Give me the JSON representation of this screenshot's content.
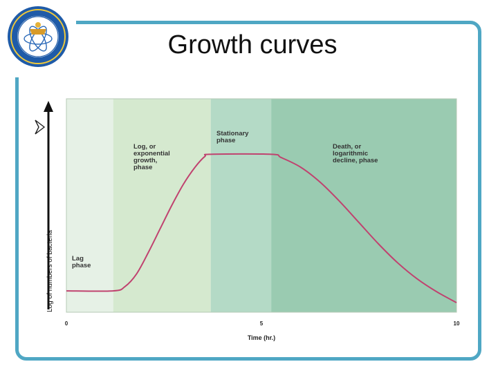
{
  "slide": {
    "title": "Growth curves"
  },
  "colors": {
    "frame": "#4fa7c4",
    "curve": "#c0426f",
    "lag_band": "#e6f1e6",
    "log_band": "#d5e9cf",
    "stationary_band": "#b4dac6",
    "death_band": "#9acbb1"
  },
  "icons": {
    "logo": "university-seal-logo",
    "bullet": "arrowhead-bullet-icon"
  },
  "chart_data": {
    "type": "line",
    "xlabel": "Time (hr.)",
    "ylabel": "Log of numbers of bacteria",
    "xlim": [
      0,
      10
    ],
    "x_ticks": [
      "0",
      "5",
      "10"
    ],
    "phases": [
      {
        "label_lines": [
          "Lag",
          "phase"
        ],
        "x_start": 0,
        "x_end": 1.2
      },
      {
        "label_lines": [
          "Log, or",
          "exponential",
          "growth,",
          "phase"
        ],
        "x_start": 1.2,
        "x_end": 3.7
      },
      {
        "label_lines": [
          "Stationary",
          "phase"
        ],
        "x_start": 3.7,
        "x_end": 5.25
      },
      {
        "label_lines": [
          "Death, or",
          "logarithmic",
          "decline, phase"
        ],
        "x_start": 5.25,
        "x_end": 10
      }
    ],
    "series": [
      {
        "x": [
          0,
          1.2,
          1.5,
          1.8,
          2.1,
          2.4,
          2.7,
          3.0,
          3.3,
          3.55,
          3.7,
          5.25,
          5.5,
          6.0,
          6.5,
          7.0,
          7.5,
          8.0,
          8.5,
          9.0,
          9.5,
          10
        ],
        "y": [
          1.0,
          1.0,
          1.2,
          1.8,
          2.8,
          3.9,
          5.0,
          6.0,
          6.8,
          7.3,
          7.4,
          7.4,
          7.25,
          6.8,
          6.1,
          5.2,
          4.2,
          3.2,
          2.3,
          1.55,
          0.95,
          0.45
        ]
      }
    ]
  }
}
